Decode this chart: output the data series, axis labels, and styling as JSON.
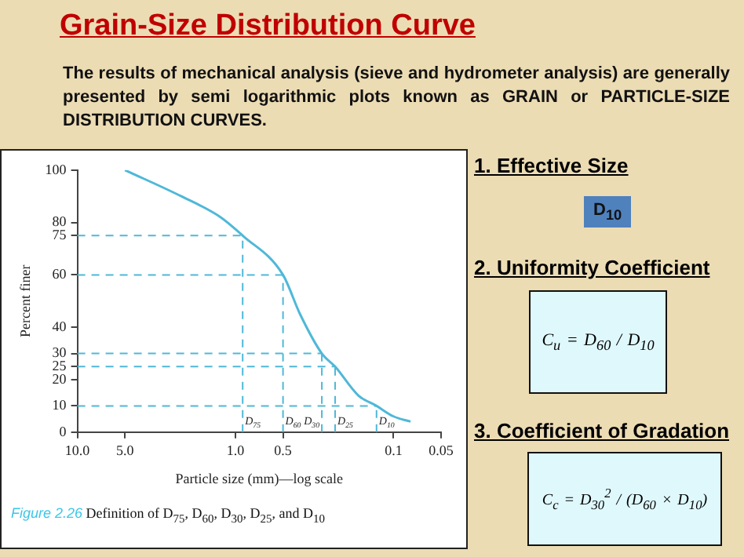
{
  "chart_data": {
    "type": "line",
    "title": "Grain-Size Distribution Curve",
    "subtitle": "The results of mechanical analysis (sieve and hydrometer analysis) are generally presented by semi logarithmic plots known as GRAIN or PARTICLE-SIZE DISTRIBUTION CURVES.",
    "xlabel": "Particle size (mm)—log scale",
    "ylabel": "Percent finer",
    "series": [
      {
        "color": "#4fb8d8",
        "x": [
          5,
          2.2,
          1.24,
          0.9,
          0.5,
          0.39,
          0.284,
          0.234,
          0.167,
          0.128,
          0.1,
          0.078
        ],
        "values": [
          100,
          90,
          82,
          75,
          60,
          45,
          30,
          25,
          14,
          10,
          6,
          4
        ]
      }
    ],
    "log": "x",
    "xlim": [
      10,
      0.05
    ],
    "xticks": [
      {
        "value": 10,
        "label": "10.0"
      },
      {
        "value": 5,
        "label": "5.0"
      },
      {
        "value": 1,
        "label": "1.0"
      },
      0.5,
      0.1,
      0.05
    ],
    "ylim": [
      0,
      100
    ],
    "yticks": [
      0,
      10,
      20,
      25,
      30,
      40,
      60,
      75,
      80,
      100
    ],
    "grid": false,
    "legend": false,
    "marker": "none",
    "line_style": "solid",
    "ref_lines": [
      {
        "axis": "y",
        "value": 75,
        "color": "#4fb8d8",
        "line_style": "dashed"
      },
      {
        "axis": "y",
        "value": 60,
        "color": "#4fb8d8",
        "line_style": "dashed"
      },
      {
        "axis": "y",
        "value": 30,
        "color": "#4fb8d8",
        "line_style": "dashed"
      },
      {
        "axis": "y",
        "value": 25,
        "color": "#4fb8d8",
        "line_style": "dashed"
      },
      {
        "axis": "y",
        "value": 10,
        "color": "#4fb8d8",
        "line_style": "dashed"
      },
      {
        "axis": "x",
        "value": 0.9,
        "label": "D$_{75}$",
        "color": "#4fb8d8",
        "line_style": "dashed"
      },
      {
        "axis": "x",
        "value": 0.5,
        "label": "D$_{60}$",
        "color": "#4fb8d8",
        "line_style": "dashed"
      },
      {
        "axis": "x",
        "value": 0.284,
        "label": "D$_{30}$",
        "color": "#4fb8d8",
        "line_style": "dashed"
      },
      {
        "axis": "x",
        "value": 0.234,
        "label": "D$_{25}$",
        "color": "#4fb8d8",
        "line_style": "dashed"
      },
      {
        "axis": "x",
        "value": 0.128,
        "label": "D$_{10}$",
        "color": "#4fb8d8",
        "line_style": "dashed"
      }
    ],
    "annotations": [
      "Figure 2.26",
      "Definition of D$_{75}$, D$_{60}$, D$_{30}$, D$_{25}$, and D$_{10}$",
      "1. Effective Size",
      "D$_{10}$",
      "2. Uniformity Coefficient",
      "C$_{u}$ = D$_{60}$ / D$_{10}$",
      "3. Coefficient of Gradation",
      "C$_{c}$ = D$_{30}$$^{2}$ / (D$_{60}$ × D$_{10}$)"
    ]
  }
}
